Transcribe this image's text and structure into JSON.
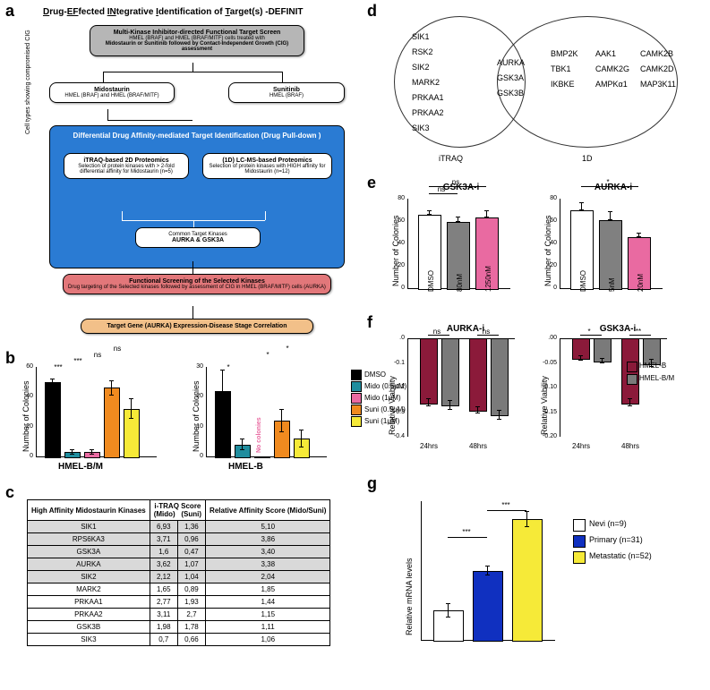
{
  "labels": {
    "a": "a",
    "b": "b",
    "c": "c",
    "d": "d",
    "e": "e",
    "f": "f",
    "g": "g"
  },
  "panelA": {
    "title": "Drug-EFfected INtegrative Identification of Target(s) -DEFINIT",
    "topBox": {
      "line1": "Multi-Kinase Inhibitor-directed Functional Target Screen",
      "line2": "HMEL (BRAF) and HMEL (BRAF/MITF) cells treated with",
      "line3": "Midostaurin or Sunitinib followed by Contact-Independent Growth (CIG) assessment"
    },
    "sideNote": "Cell types showing compromised CIG",
    "midoBox": {
      "line1": "Midostaurin",
      "line2": "HMEL (BRAF) and HMEL (BRAF/MITF)"
    },
    "suniBox": {
      "line1": "Sunitinib",
      "line2": "HMEL (BRAF)"
    },
    "blueBox": {
      "title": "Differential Drug Affinity-mediated Target Identification (Drug Pull-down )",
      "left": {
        "t": "iTRAQ-based 2D Proteomics",
        "b": "Selection of protein kinases with > 2-fold differential affinity for Midostaurin (n=5)"
      },
      "right": {
        "t": "(1D) LC-MS-based Proteomics",
        "b": "Selection of protein kinases with HIGH affinity for Midostaurin (n=12)"
      },
      "common": {
        "l1": "Common Target Kinases",
        "l2": "AURKA & GSK3A"
      }
    },
    "redBox": {
      "l1": "Functional Screening of the Selected Kinases",
      "l2": "Drug targeting of the Selected kinases followed by assessment of CIG in HMEL (BRAF/MITF) cells (AURKA)"
    },
    "orangeBox": "Target Gene (AURKA) Expression-Disease Stage Correlation",
    "colors": {
      "grey": "#b6b6b6",
      "blue": "#2a7bd3",
      "red": "#e2777a",
      "orange": "#f2c089"
    }
  },
  "panelB": {
    "ylab": "Number of Colonies",
    "groups": [
      "HMEL-B/M",
      "HMEL-B"
    ],
    "legend": [
      {
        "label": "DMSO",
        "color": "#000000"
      },
      {
        "label": "Mido (0.5µM)",
        "color": "#1f8d9e"
      },
      {
        "label": "Mido (1µM)",
        "color": "#e96aa1"
      },
      {
        "label": "Suni (0.5µM)",
        "color": "#f08a1f"
      },
      {
        "label": "Suni (1µM)",
        "color": "#f6ea38"
      }
    ],
    "left": {
      "ymax": 60,
      "vals": [
        50,
        3,
        3,
        46,
        32
      ],
      "err": [
        2,
        2,
        2,
        5,
        7
      ],
      "sig": [
        "***",
        "***",
        "ns",
        "ns"
      ],
      "nocol": false
    },
    "right": {
      "ymax": 30,
      "vals": [
        22,
        4,
        0,
        12,
        6
      ],
      "err": [
        7,
        2,
        0,
        4,
        3
      ],
      "sig": [
        "*",
        "",
        "*",
        "*"
      ],
      "nocol": true,
      "noColText": "No colonies"
    }
  },
  "panelC": {
    "headers": [
      "High Affinity Midostaurin Kinases",
      "i-TRAQ Score (Mido)",
      "(Suni)",
      "Relative Affinity Score (Mido/Suni)"
    ],
    "rows": [
      [
        "SIK1",
        "6,93",
        "1,36",
        "5,10"
      ],
      [
        "RPS6KA3",
        "3,71",
        "0,96",
        "3,86"
      ],
      [
        "GSK3A",
        "1,6",
        "0,47",
        "3,40"
      ],
      [
        "AURKA",
        "3,62",
        "1,07",
        "3,38"
      ],
      [
        "SIK2",
        "2,12",
        "1,04",
        "2,04"
      ],
      [
        "MARK2",
        "1,65",
        "0,89",
        "1,85"
      ],
      [
        "PRKAA1",
        "2,77",
        "1,93",
        "1,44"
      ],
      [
        "PRKAA2",
        "3,11",
        "2,7",
        "1,15"
      ],
      [
        "GSK3B",
        "1,98",
        "1,78",
        "1,11"
      ],
      [
        "SIK3",
        "0,7",
        "0,66",
        "1,06"
      ]
    ],
    "shadeTop": "#d9d9d9"
  },
  "panelD": {
    "leftLabel": "iTRAQ",
    "rightLabel": "1D",
    "left": [
      "SIK1",
      "RSK2",
      "SIK2",
      "MARK2",
      "PRKAA1",
      "PRKAA2",
      "SIK3"
    ],
    "overlap": [
      "AURKA",
      "GSK3A",
      "GSK3B"
    ],
    "right": [
      "BMP2K",
      "TBK1",
      "IKBKE",
      "AAK1",
      "CAMK2G",
      "AMPKα1",
      "CAMK2B",
      "CAMK2D",
      "MAP3K11"
    ]
  },
  "panelE": {
    "ylab": "Number of Colonies",
    "charts": [
      {
        "title": "GSK3A-i",
        "ymax": 80,
        "xlabels": [
          "DMSO",
          "80nM",
          "1250nM"
        ],
        "vals": [
          66,
          59,
          63
        ],
        "err": [
          4,
          5,
          7
        ],
        "colors": [
          "#ffffff",
          "#808080",
          "#e96aa1"
        ],
        "sig": [
          "ns",
          "ns"
        ]
      },
      {
        "title": "AURKA-i",
        "ymax": 80,
        "xlabels": [
          "DMSO",
          "5nM",
          "20nM"
        ],
        "vals": [
          70,
          61,
          46
        ],
        "err": [
          7,
          8,
          4
        ],
        "colors": [
          "#ffffff",
          "#808080",
          "#e96aa1"
        ],
        "sig": [
          "",
          "*"
        ]
      }
    ]
  },
  "panelF": {
    "ylab": "Relative Viability",
    "legend": [
      {
        "label": "HMEL-B",
        "color": "#8b1a3a"
      },
      {
        "label": "HMEL-B/M",
        "color": "#7a7a7a"
      }
    ],
    "charts": [
      {
        "title": "AURKA-i",
        "ymin": -0.4,
        "tick": 0.1,
        "xlabels": [
          "24hrs",
          "48hrs"
        ],
        "pairs": [
          [
            -0.26,
            -0.27
          ],
          [
            -0.29,
            -0.31
          ]
        ],
        "err": [
          [
            0.03,
            0.04
          ],
          [
            0.03,
            0.04
          ]
        ],
        "sig": [
          "ns",
          "ns"
        ]
      },
      {
        "title": "GSK3A-i",
        "ymin": -0.2,
        "tick": 0.05,
        "xlabels": [
          "24hrs",
          "48hrs"
        ],
        "pairs": [
          [
            -0.04,
            -0.045
          ],
          [
            -0.13,
            -0.05
          ]
        ],
        "err": [
          [
            0.01,
            0.01
          ],
          [
            0.015,
            0.015
          ]
        ],
        "sig": [
          "*",
          "**"
        ]
      }
    ]
  },
  "panelG": {
    "ylab": "Relative mRNA levels",
    "legend": [
      {
        "label": "Nevi (n=9)",
        "color": "#ffffff"
      },
      {
        "label": "Primary (n=31)",
        "color": "#1030c0"
      },
      {
        "label": "Metastatic (n=52)",
        "color": "#f6ea38"
      }
    ],
    "vals": [
      30,
      70,
      122
    ],
    "err": [
      7,
      5,
      8
    ],
    "ymax": 140,
    "sig": [
      "***",
      "***"
    ]
  }
}
